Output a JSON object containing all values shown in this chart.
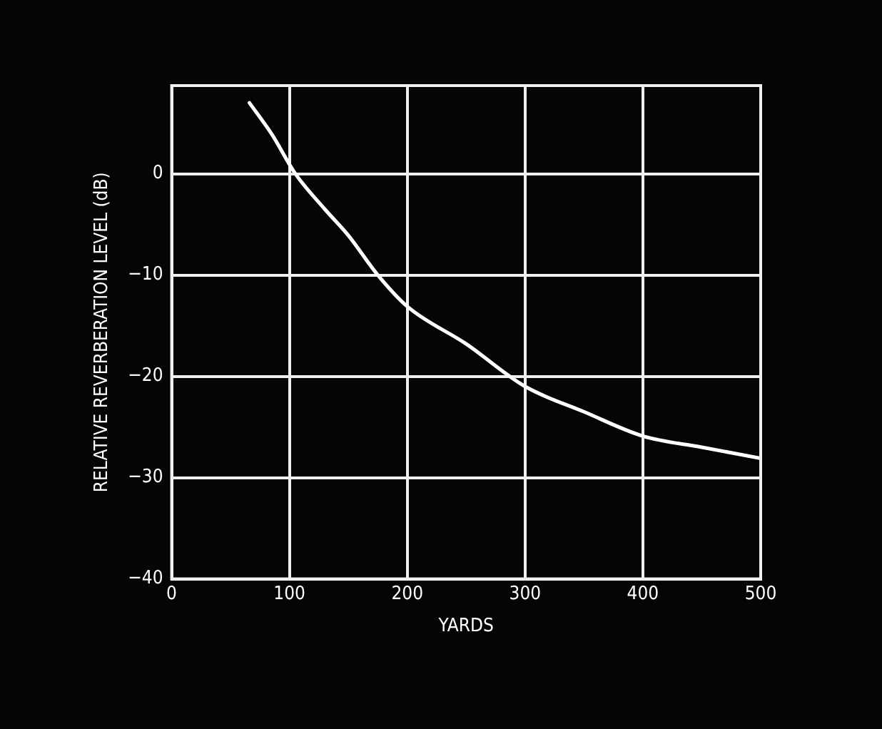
{
  "chart_data": {
    "type": "line",
    "xlabel": "YARDS",
    "ylabel": "RELATIVE REVERBERATION LEVEL (dB)",
    "x": [
      66,
      85,
      105,
      130,
      150,
      175,
      200,
      250,
      300,
      350,
      400,
      450,
      500
    ],
    "series": [
      {
        "color": "#ffffff",
        "values": [
          7,
          3.9,
          0,
          -3.5,
          -6.1,
          -10,
          -13.1,
          -16.8,
          -21,
          -23.5,
          -25.9,
          -27,
          -28.1
        ]
      }
    ],
    "xlim": [
      0,
      500
    ],
    "xticks": [
      0,
      100,
      200,
      300,
      400,
      500
    ],
    "ylim": [
      -40,
      8.7
    ],
    "yticks": [
      -40,
      -30,
      -20,
      -10,
      0
    ],
    "grid": true,
    "legend": false,
    "marker": "none",
    "line_style": "solid"
  }
}
